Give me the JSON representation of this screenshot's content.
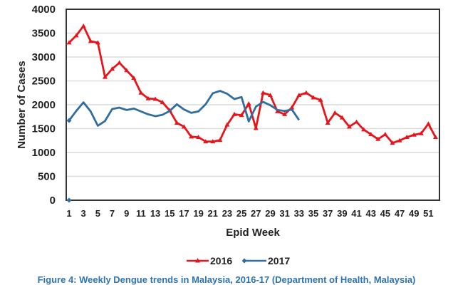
{
  "chart_data": {
    "type": "line",
    "title": "",
    "xlabel": "Epid Week",
    "ylabel": "Number of Cases",
    "ylim": [
      0,
      4000
    ],
    "xlim": [
      1,
      52
    ],
    "yticks": [
      "0",
      "500",
      "1000",
      "1500",
      "2000",
      "2500",
      "3000",
      "3500",
      "4000"
    ],
    "xticks": [
      "1",
      "3",
      "5",
      "7",
      "9",
      "11",
      "13",
      "15",
      "17",
      "19",
      "21",
      "23",
      "25",
      "27",
      "29",
      "31",
      "33",
      "35",
      "37",
      "39",
      "41",
      "43",
      "45",
      "47",
      "49",
      "51"
    ],
    "grid": true,
    "legend_position": "bottom",
    "series": [
      {
        "name": "2016",
        "color": "#e8141c",
        "marker": "triangle",
        "x": [
          1,
          2,
          3,
          4,
          5,
          6,
          7,
          8,
          9,
          10,
          11,
          12,
          13,
          14,
          15,
          16,
          17,
          18,
          19,
          20,
          21,
          22,
          23,
          24,
          25,
          26,
          27,
          28,
          29,
          30,
          31,
          32,
          33,
          34,
          35,
          36,
          37,
          38,
          39,
          40,
          41,
          42,
          43,
          44,
          45,
          46,
          47,
          48,
          49,
          50,
          51,
          52
        ],
        "values": [
          3300,
          3450,
          3650,
          3330,
          3300,
          2580,
          2750,
          2880,
          2720,
          2560,
          2250,
          2130,
          2120,
          2050,
          1880,
          1620,
          1540,
          1330,
          1320,
          1230,
          1230,
          1260,
          1580,
          1800,
          1780,
          2020,
          1510,
          2250,
          2200,
          1860,
          1800,
          1940,
          2200,
          2250,
          2150,
          2100,
          1620,
          1830,
          1730,
          1540,
          1640,
          1480,
          1380,
          1280,
          1380,
          1200,
          1250,
          1320,
          1370,
          1400,
          1600,
          1320
        ]
      },
      {
        "name": "2017",
        "color": "#2f6e9e",
        "marker": "diamond",
        "x": [
          1,
          2,
          3,
          4,
          5,
          6,
          7,
          8,
          9,
          10,
          11,
          12,
          13,
          14,
          15,
          16,
          17,
          18,
          19,
          20,
          21,
          22,
          23,
          24,
          25,
          26,
          27,
          28,
          29,
          30,
          31,
          32,
          33
        ],
        "values": [
          1670,
          1870,
          2050,
          1860,
          1560,
          1660,
          1910,
          1940,
          1890,
          1920,
          1860,
          1800,
          1760,
          1790,
          1870,
          2010,
          1900,
          1830,
          1860,
          2010,
          2240,
          2290,
          2230,
          2120,
          2160,
          1650,
          1960,
          2060,
          1990,
          1890,
          1870,
          1900,
          1680
        ],
        "extra_point": {
          "x": 1,
          "value": 0
        }
      }
    ],
    "caption": "Figure 4: Weekly Dengue trends in Malaysia, 2016-17 (Department of Health, Malaysia)"
  }
}
